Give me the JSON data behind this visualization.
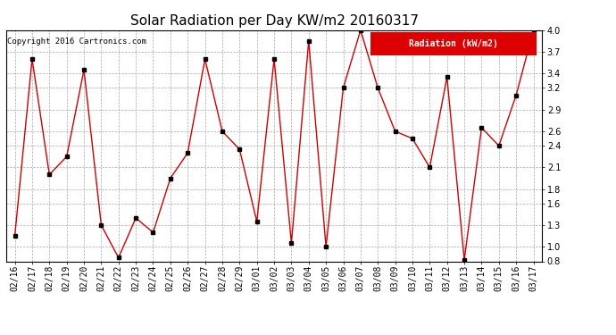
{
  "title": "Solar Radiation per Day KW/m2 20160317",
  "copyright_text": "Copyright 2016 Cartronics.com",
  "legend_label": "Radiation (kW/m2)",
  "dates": [
    "02/16",
    "02/17",
    "02/18",
    "02/19",
    "02/20",
    "02/21",
    "02/22",
    "02/23",
    "02/24",
    "02/25",
    "02/26",
    "02/27",
    "02/28",
    "02/29",
    "03/01",
    "03/02",
    "03/03",
    "03/04",
    "03/05",
    "03/06",
    "03/07",
    "03/08",
    "03/09",
    "03/10",
    "03/11",
    "03/12",
    "03/13",
    "03/14",
    "03/15",
    "03/16",
    "03/17"
  ],
  "values": [
    1.15,
    3.6,
    2.0,
    2.25,
    3.45,
    1.3,
    0.85,
    1.4,
    1.2,
    1.95,
    2.3,
    3.6,
    2.6,
    2.35,
    1.35,
    3.6,
    1.05,
    3.85,
    1.0,
    3.2,
    4.0,
    3.2,
    2.6,
    2.5,
    2.1,
    3.35,
    0.82,
    2.65,
    2.4,
    3.1,
    4.0
  ],
  "line_color": "#cc0000",
  "marker_color": "#000000",
  "ylim": [
    0.8,
    4.0
  ],
  "yticks": [
    0.8,
    1.0,
    1.3,
    1.6,
    1.8,
    2.1,
    2.4,
    2.6,
    2.9,
    3.2,
    3.4,
    3.7,
    4.0
  ],
  "background_color": "#ffffff",
  "grid_color": "#aaaaaa",
  "title_fontsize": 11,
  "copyright_fontsize": 6.5,
  "tick_fontsize": 7,
  "legend_bg": "#dd0000",
  "legend_text_color": "#ffffff"
}
